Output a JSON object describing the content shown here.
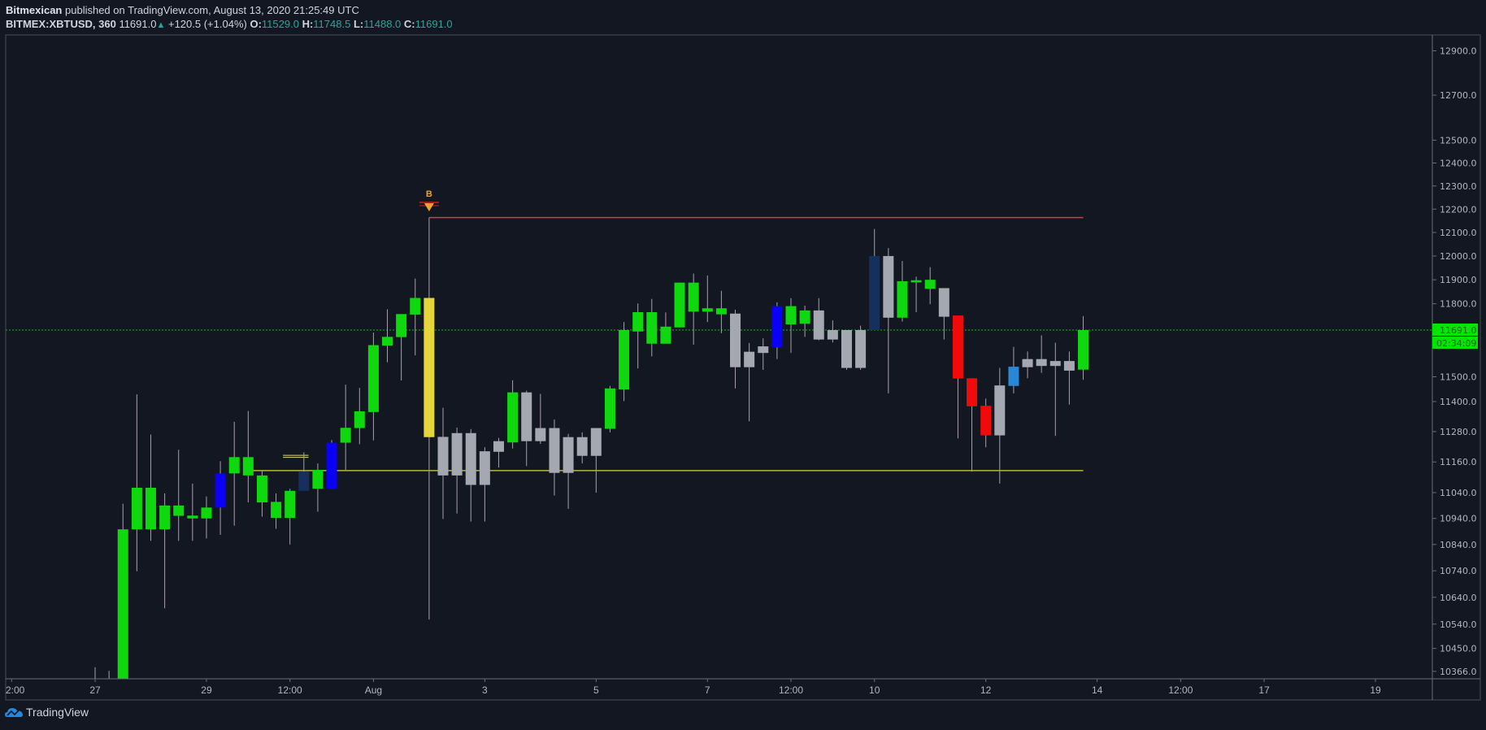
{
  "header": {
    "author": "Bitmexican",
    "published_text": "published on TradingView.com, August 13, 2020 21:25:49 UTC",
    "symbol": "BITMEX:XBTUSD, 360",
    "last": "11691.0",
    "change": "+120.5 (+1.04%)",
    "o_label": "O:",
    "o": "11529.0",
    "h_label": "H:",
    "h": "11748.5",
    "l_label": "L:",
    "l": "11488.0",
    "c_label": "C:",
    "c": "11691.0"
  },
  "colors": {
    "background": "#131722",
    "green": "#0fd80f",
    "gray": "#a5a8b0",
    "blue": "#0a00f5",
    "navy": "#15305c",
    "yellow": "#e6d63a",
    "red": "#f00a0a",
    "lightblue": "#2a86d6",
    "resistance": "#c9414e",
    "support": "#b8b830",
    "last_price": "#00e600"
  },
  "chart_data": {
    "type": "candlestick",
    "scale": "log",
    "interval_minutes": 360,
    "start": "2020-07-27T00:00:00Z",
    "price_ticks": [
      12900,
      12700,
      12500,
      12400,
      12300,
      12200,
      12100,
      12000,
      11900,
      11800,
      11500,
      11400,
      11280,
      11160,
      11040,
      10940,
      10840,
      10740,
      10640,
      10540,
      10450,
      10366
    ],
    "price_tick_labels": [
      "12900.0",
      "12700.0",
      "12500.0",
      "12400.0",
      "12300.0",
      "12200.0",
      "12100.0",
      "12000.0",
      "11900.0",
      "11800.0",
      "11500.0",
      "11400.0",
      "11280.0",
      "11160.0",
      "11040.0",
      "10940.0",
      "10840.0",
      "10740.0",
      "10640.0",
      "10540.0",
      "10450.0",
      "10366.0"
    ],
    "time_labels": [
      {
        "label": "2:00",
        "at": "2020-07-25T12:00:00Z"
      },
      {
        "label": "27",
        "at": "2020-07-27T00:00:00Z"
      },
      {
        "label": "29",
        "at": "2020-07-29T00:00:00Z"
      },
      {
        "label": "12:00",
        "at": "2020-07-30T12:00:00Z"
      },
      {
        "label": "Aug",
        "at": "2020-08-01T00:00:00Z"
      },
      {
        "label": "3",
        "at": "2020-08-03T00:00:00Z"
      },
      {
        "label": "5",
        "at": "2020-08-05T00:00:00Z"
      },
      {
        "label": "7",
        "at": "2020-08-07T00:00:00Z"
      },
      {
        "label": "12:00",
        "at": "2020-08-08T12:00:00Z"
      },
      {
        "label": "10",
        "at": "2020-08-10T00:00:00Z"
      },
      {
        "label": "12",
        "at": "2020-08-12T00:00:00Z"
      },
      {
        "label": "14",
        "at": "2020-08-14T00:00:00Z"
      },
      {
        "label": "12:00",
        "at": "2020-08-15T12:00:00Z"
      },
      {
        "label": "17",
        "at": "2020-08-17T00:00:00Z"
      },
      {
        "label": "19",
        "at": "2020-08-19T00:00:00Z"
      }
    ],
    "candles_ohlc_color": [
      [
        10250,
        10381,
        10100,
        10300,
        "green"
      ],
      [
        10300,
        10368,
        10150,
        10200,
        "green"
      ],
      [
        10200,
        10997,
        10150,
        10898,
        "green"
      ],
      [
        10898,
        11429,
        10738,
        11059,
        "green"
      ],
      [
        11059,
        11268,
        10854,
        10898,
        "green"
      ],
      [
        10898,
        11037,
        10599,
        10990,
        "green"
      ],
      [
        10990,
        11208,
        10854,
        10950,
        "green"
      ],
      [
        10951,
        11075,
        10854,
        10940,
        "green"
      ],
      [
        10940,
        11025,
        10863,
        10982,
        "green"
      ],
      [
        10982,
        11163,
        10877,
        11115,
        "blue"
      ],
      [
        11115,
        11319,
        10912,
        11179,
        "green"
      ],
      [
        11179,
        11362,
        11002,
        11107,
        "green"
      ],
      [
        11107,
        11126,
        10947,
        11002,
        "green"
      ],
      [
        11004,
        11037,
        10900,
        10942,
        "green"
      ],
      [
        10942,
        11055,
        10840,
        11047,
        "green"
      ],
      [
        11047,
        11198,
        11047,
        11122,
        "navy"
      ],
      [
        11129,
        11154,
        10966,
        11055,
        "green"
      ],
      [
        11055,
        11246,
        11055,
        11236,
        "blue"
      ],
      [
        11236,
        11468,
        11129,
        11295,
        "green"
      ],
      [
        11294,
        11455,
        11230,
        11361,
        "green"
      ],
      [
        11358,
        11681,
        11245,
        11629,
        "green"
      ],
      [
        11627,
        11777,
        11559,
        11663,
        "green"
      ],
      [
        11662,
        11757,
        11485,
        11757,
        "green"
      ],
      [
        11755,
        11905,
        11587,
        11824,
        "green"
      ],
      [
        11824,
        12164,
        10557,
        11258,
        "yellow"
      ],
      [
        11259,
        11375,
        10938,
        11107,
        "gray"
      ],
      [
        11107,
        11296,
        10959,
        11274,
        "gray"
      ],
      [
        11274,
        11290,
        10928,
        11070,
        "gray"
      ],
      [
        11070,
        11218,
        10928,
        11202,
        "gray"
      ],
      [
        11200,
        11255,
        11138,
        11242,
        "gray"
      ],
      [
        11237,
        11486,
        11213,
        11437,
        "green"
      ],
      [
        11437,
        11444,
        11144,
        11242,
        "gray"
      ],
      [
        11242,
        11431,
        11231,
        11294,
        "gray"
      ],
      [
        11294,
        11328,
        11029,
        11117,
        "gray"
      ],
      [
        11117,
        11271,
        10977,
        11258,
        "gray"
      ],
      [
        11258,
        11277,
        11154,
        11184,
        "gray"
      ],
      [
        11184,
        11294,
        11040,
        11294,
        "gray"
      ],
      [
        11291,
        11463,
        11277,
        11453,
        "green"
      ],
      [
        11449,
        11724,
        11402,
        11691,
        "green"
      ],
      [
        11685,
        11801,
        11534,
        11765,
        "green"
      ],
      [
        11765,
        11820,
        11583,
        11635,
        "green"
      ],
      [
        11635,
        11764,
        11635,
        11705,
        "green"
      ],
      [
        11702,
        11888,
        11702,
        11888,
        "green"
      ],
      [
        11888,
        11926,
        11631,
        11767,
        "green"
      ],
      [
        11767,
        11918,
        11724,
        11781,
        "green"
      ],
      [
        11781,
        11854,
        11678,
        11756,
        "green"
      ],
      [
        11759,
        11775,
        11453,
        11539,
        "gray"
      ],
      [
        11539,
        11638,
        11321,
        11602,
        "gray"
      ],
      [
        11597,
        11657,
        11528,
        11624,
        "gray"
      ],
      [
        11620,
        11806,
        11572,
        11790,
        "blue"
      ],
      [
        11790,
        11823,
        11597,
        11714,
        "green"
      ],
      [
        11717,
        11792,
        11663,
        11772,
        "green"
      ],
      [
        11772,
        11823,
        11649,
        11652,
        "gray"
      ],
      [
        11652,
        11731,
        11640,
        11691,
        "gray"
      ],
      [
        11691,
        11691,
        11528,
        11536,
        "gray"
      ],
      [
        11536,
        11709,
        11528,
        11691,
        "gray"
      ],
      [
        11691,
        12115,
        11691,
        12000,
        "navy"
      ],
      [
        12000,
        12034,
        11433,
        11742,
        "gray"
      ],
      [
        11742,
        11979,
        11726,
        11894,
        "green"
      ],
      [
        11889,
        11913,
        11765,
        11898,
        "green"
      ],
      [
        11900,
        11953,
        11798,
        11862,
        "green"
      ],
      [
        11865,
        11865,
        11652,
        11746,
        "gray"
      ],
      [
        11751,
        11751,
        11253,
        11493,
        "red"
      ],
      [
        11494,
        11494,
        11122,
        11381,
        "red"
      ],
      [
        11383,
        11412,
        11218,
        11265,
        "red"
      ],
      [
        11265,
        11536,
        11075,
        11465,
        "gray"
      ],
      [
        11463,
        11622,
        11433,
        11541,
        "lightblue"
      ],
      [
        11539,
        11603,
        11494,
        11572,
        "gray"
      ],
      [
        11572,
        11669,
        11516,
        11544,
        "gray"
      ],
      [
        11544,
        11639,
        11263,
        11564,
        "gray"
      ],
      [
        11564,
        11603,
        11388,
        11525,
        "gray"
      ],
      [
        11529,
        11748.5,
        11488,
        11691,
        "green"
      ]
    ],
    "resistance_line": {
      "price": 12164,
      "from": "2020-08-02T00:00:00Z",
      "to": "2020-08-13T18:00:00Z"
    },
    "support_line": {
      "price": 11126,
      "from": "2020-07-29T18:00:00Z",
      "to": "2020-08-13T18:00:00Z"
    },
    "short_marks": {
      "prices": [
        11186,
        11178
      ],
      "from": "2020-07-30T09:00:00Z",
      "to": "2020-07-30T20:00:00Z"
    },
    "signal": {
      "label": "B",
      "at": "2020-08-02T00:00:00Z",
      "color": "#f0a030"
    },
    "last_price": {
      "price": 11691,
      "label": "11691.0",
      "countdown": "02:34:09"
    }
  },
  "footer": {
    "logo_text": "TradingView"
  }
}
